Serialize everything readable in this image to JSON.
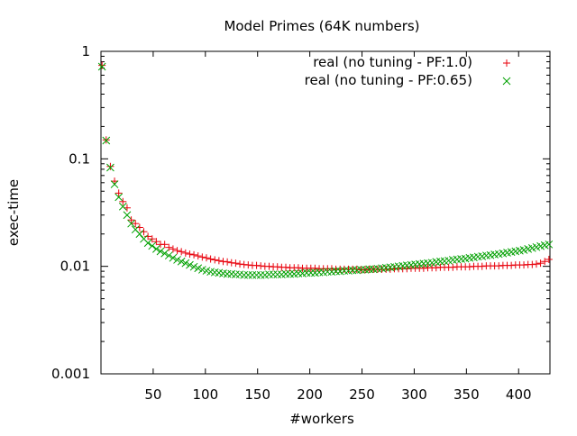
{
  "chart_data": {
    "type": "scatter",
    "title": "Model Primes (64K numbers)",
    "xlabel": "#workers",
    "ylabel": "exec-time",
    "xlim": [
      0,
      430
    ],
    "ylim": [
      0.001,
      1
    ],
    "y_scale": "log",
    "grid": false,
    "legend_position": "top-right",
    "x_ticks": [
      50,
      100,
      150,
      200,
      250,
      300,
      350,
      400
    ],
    "x_tick_labels": [
      "50",
      "100",
      "150",
      "200",
      "250",
      "300",
      "350",
      "400"
    ],
    "y_ticks": [
      0.001,
      0.01,
      0.1,
      1
    ],
    "y_tick_labels": [
      "0.001",
      "0.01",
      "0.1",
      "1"
    ],
    "series": [
      {
        "name": "real (no tuning - PF:1.0)",
        "marker": "plus",
        "color": "#e8000b",
        "x": [
          1,
          5,
          9,
          13,
          17,
          21,
          25,
          29,
          33,
          37,
          41,
          45,
          49,
          53,
          57,
          61,
          65,
          69,
          73,
          77,
          81,
          85,
          89,
          93,
          97,
          101,
          105,
          109,
          113,
          117,
          121,
          125,
          129,
          133,
          137,
          141,
          145,
          149,
          153,
          157,
          161,
          165,
          169,
          173,
          177,
          181,
          185,
          189,
          193,
          197,
          201,
          205,
          209,
          213,
          217,
          221,
          225,
          229,
          233,
          237,
          241,
          245,
          249,
          253,
          257,
          261,
          265,
          269,
          273,
          277,
          281,
          285,
          289,
          293,
          297,
          301,
          305,
          309,
          313,
          317,
          321,
          325,
          329,
          333,
          337,
          341,
          345,
          349,
          353,
          357,
          361,
          365,
          369,
          373,
          377,
          381,
          385,
          389,
          393,
          397,
          401,
          405,
          409,
          413,
          417,
          421,
          425,
          429
        ],
        "y": [
          0.74,
          0.15,
          0.085,
          0.062,
          0.048,
          0.04,
          0.035,
          0.027,
          0.025,
          0.023,
          0.021,
          0.019,
          0.018,
          0.017,
          0.016,
          0.016,
          0.015,
          0.0145,
          0.014,
          0.0137,
          0.0133,
          0.013,
          0.0128,
          0.0125,
          0.0122,
          0.012,
          0.0117,
          0.0115,
          0.0113,
          0.0111,
          0.011,
          0.0108,
          0.0107,
          0.0105,
          0.0104,
          0.0103,
          0.0102,
          0.0102,
          0.0101,
          0.01,
          0.01,
          0.0099,
          0.0099,
          0.0098,
          0.0098,
          0.0097,
          0.0097,
          0.0097,
          0.0096,
          0.0096,
          0.0096,
          0.0096,
          0.0095,
          0.0095,
          0.0095,
          0.0095,
          0.0094,
          0.0094,
          0.0094,
          0.0094,
          0.0094,
          0.0094,
          0.0093,
          0.0093,
          0.0094,
          0.0094,
          0.0094,
          0.0094,
          0.0094,
          0.0094,
          0.0095,
          0.0095,
          0.0095,
          0.0095,
          0.0096,
          0.0096,
          0.0096,
          0.0096,
          0.0097,
          0.0097,
          0.0097,
          0.0098,
          0.0098,
          0.0098,
          0.0098,
          0.0099,
          0.0099,
          0.0099,
          0.0099,
          0.01,
          0.01,
          0.01,
          0.0101,
          0.0101,
          0.0101,
          0.0101,
          0.0102,
          0.0102,
          0.0102,
          0.0103,
          0.0103,
          0.0103,
          0.0104,
          0.0104,
          0.0105,
          0.0107,
          0.0111,
          0.0116
        ]
      },
      {
        "name": "real (no tuning - PF:0.65)",
        "marker": "cross",
        "color": "#00a000",
        "x": [
          1,
          5,
          9,
          13,
          17,
          21,
          25,
          29,
          33,
          37,
          41,
          45,
          49,
          53,
          57,
          61,
          65,
          69,
          73,
          77,
          81,
          85,
          89,
          93,
          97,
          101,
          105,
          109,
          113,
          117,
          121,
          125,
          129,
          133,
          137,
          141,
          145,
          149,
          153,
          157,
          161,
          165,
          169,
          173,
          177,
          181,
          185,
          189,
          193,
          197,
          201,
          205,
          209,
          213,
          217,
          221,
          225,
          229,
          233,
          237,
          241,
          245,
          249,
          253,
          257,
          261,
          265,
          269,
          273,
          277,
          281,
          285,
          289,
          293,
          297,
          301,
          305,
          309,
          313,
          317,
          321,
          325,
          329,
          333,
          337,
          341,
          345,
          349,
          353,
          357,
          361,
          365,
          369,
          373,
          377,
          381,
          385,
          389,
          393,
          397,
          401,
          405,
          409,
          413,
          417,
          421,
          425,
          429
        ],
        "y": [
          0.72,
          0.148,
          0.083,
          0.058,
          0.044,
          0.036,
          0.03,
          0.025,
          0.022,
          0.02,
          0.018,
          0.0165,
          0.0155,
          0.0145,
          0.0138,
          0.0132,
          0.0126,
          0.012,
          0.0115,
          0.0111,
          0.0107,
          0.0103,
          0.0099,
          0.0096,
          0.0093,
          0.0091,
          0.0089,
          0.0088,
          0.0087,
          0.0086,
          0.0085,
          0.0085,
          0.0084,
          0.0084,
          0.0083,
          0.0083,
          0.0083,
          0.0083,
          0.0083,
          0.0083,
          0.0084,
          0.0084,
          0.0084,
          0.0084,
          0.0085,
          0.0085,
          0.0085,
          0.0086,
          0.0086,
          0.0087,
          0.0087,
          0.0087,
          0.0088,
          0.0088,
          0.0089,
          0.0089,
          0.009,
          0.009,
          0.0091,
          0.0091,
          0.0092,
          0.0092,
          0.0093,
          0.0093,
          0.0094,
          0.0094,
          0.0095,
          0.0096,
          0.0097,
          0.0098,
          0.0099,
          0.01,
          0.0101,
          0.0102,
          0.0103,
          0.0104,
          0.0105,
          0.0106,
          0.0107,
          0.0108,
          0.011,
          0.0111,
          0.0112,
          0.0113,
          0.0115,
          0.0116,
          0.0117,
          0.0118,
          0.012,
          0.0121,
          0.0123,
          0.0124,
          0.0126,
          0.0127,
          0.0129,
          0.013,
          0.0132,
          0.0134,
          0.0136,
          0.0138,
          0.014,
          0.0142,
          0.0145,
          0.0148,
          0.0151,
          0.0154,
          0.0157,
          0.016
        ]
      }
    ]
  }
}
